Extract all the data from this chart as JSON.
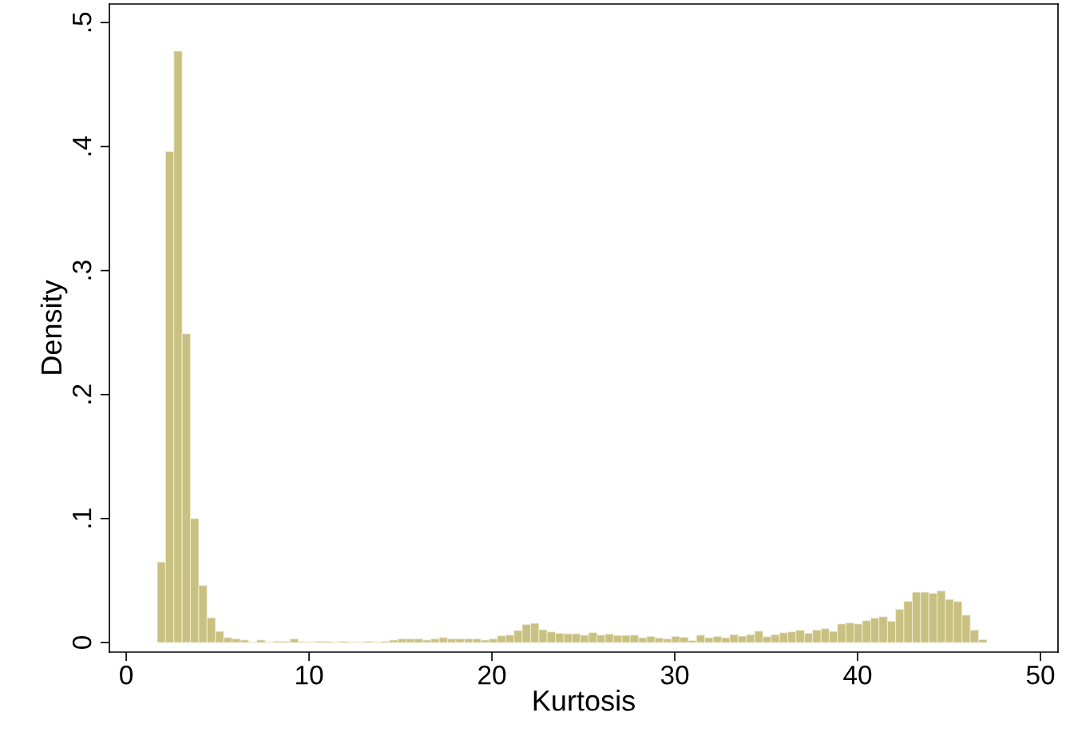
{
  "chart_data": {
    "type": "histogram",
    "xlabel": "Kurtosis",
    "ylabel": "Density",
    "color": "#c9c181",
    "grid": false,
    "bins": [
      1.7,
      2.15,
      2.61,
      3.06,
      3.51,
      3.97,
      4.42,
      4.88,
      5.33,
      5.78,
      6.24,
      6.69,
      7.14,
      7.6,
      8.05,
      8.51,
      8.96,
      9.41,
      9.87,
      10.32,
      10.77,
      11.23,
      11.68,
      12.14,
      12.59,
      13.04,
      13.5,
      13.95,
      14.4,
      14.86,
      15.31,
      15.76,
      16.22,
      16.67,
      17.13,
      17.58,
      18.03,
      18.49,
      18.94,
      19.39,
      19.85,
      20.3,
      20.76,
      21.21,
      21.66,
      22.12,
      22.57,
      23.02,
      23.48,
      23.93,
      24.39,
      24.84,
      25.29,
      25.75,
      26.2,
      26.65,
      27.11,
      27.56,
      28.02,
      28.47,
      28.92,
      29.38,
      29.83,
      30.28,
      30.74,
      31.19,
      31.64,
      32.1,
      32.55,
      33.01,
      33.46,
      33.91,
      34.37,
      34.82,
      35.27,
      35.73,
      36.18,
      36.63,
      37.09,
      37.54,
      38.0,
      38.45,
      38.9,
      39.36,
      39.81,
      40.26,
      40.72,
      41.17,
      41.63,
      42.08,
      42.53,
      42.99,
      43.44,
      43.89,
      44.35,
      44.8,
      45.25,
      45.71,
      46.16,
      46.62,
      47.07
    ],
    "values": [
      0.065,
      0.396,
      0.477,
      0.249,
      0.1,
      0.046,
      0.02,
      0.009,
      0.004,
      0.003,
      0.002,
      0.0005,
      0.002,
      0.0005,
      0.001,
      0.001,
      0.003,
      0.0007,
      0.0005,
      0.001,
      0.001,
      0.0005,
      0.001,
      0.0005,
      0.0005,
      0.001,
      0.0005,
      0.001,
      0.002,
      0.003,
      0.003,
      0.003,
      0.002,
      0.003,
      0.004,
      0.003,
      0.003,
      0.003,
      0.003,
      0.002,
      0.003,
      0.0054,
      0.006,
      0.0097,
      0.0146,
      0.0155,
      0.0103,
      0.0086,
      0.0075,
      0.0071,
      0.0071,
      0.006,
      0.008,
      0.006,
      0.0069,
      0.0058,
      0.0058,
      0.006,
      0.0039,
      0.005,
      0.0037,
      0.003,
      0.005,
      0.0043,
      0.0017,
      0.006,
      0.0039,
      0.005,
      0.0039,
      0.0064,
      0.0052,
      0.0064,
      0.0092,
      0.0047,
      0.0064,
      0.0079,
      0.0086,
      0.0099,
      0.0075,
      0.0101,
      0.0112,
      0.009,
      0.015,
      0.0159,
      0.015,
      0.0176,
      0.0198,
      0.0208,
      0.0172,
      0.0268,
      0.0333,
      0.0406,
      0.0406,
      0.0397,
      0.0417,
      0.0348,
      0.0331,
      0.0221,
      0.0101,
      0.0024
    ],
    "xlim": [
      -0.92,
      50.96
    ],
    "xticks": [
      0,
      10,
      20,
      30,
      40,
      50
    ],
    "ylim": [
      -0.0077,
      0.515
    ],
    "yticks": [
      0,
      {
        "value": 0.1,
        "label": ".1"
      },
      {
        "value": 0.2,
        "label": ".2"
      },
      {
        "value": 0.3,
        "label": ".3"
      },
      {
        "value": 0.4,
        "label": ".4"
      },
      {
        "value": 0.5,
        "label": ".5"
      }
    ]
  }
}
